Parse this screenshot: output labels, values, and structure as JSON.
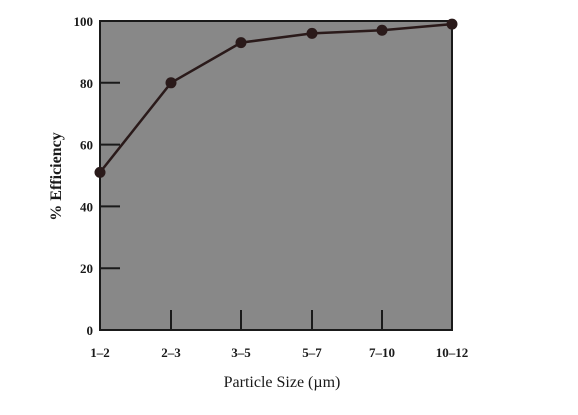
{
  "chart_data": {
    "type": "line",
    "title": "",
    "xlabel": "Particle Size (µm)",
    "ylabel": "% Efficiency",
    "categories": [
      "1–2",
      "2–3",
      "3–5",
      "5–7",
      "7–10",
      "10–12"
    ],
    "values": [
      51,
      80,
      93,
      96,
      97,
      99
    ],
    "ylim": [
      0,
      100
    ],
    "yticks": [
      0,
      20,
      40,
      60,
      80,
      100
    ],
    "grid": false,
    "legend": "none",
    "colors": {
      "plot_background": "#888888",
      "line": "#2a1a1a",
      "marker": "#2a1a1a",
      "axis": "#1a1a1a"
    }
  }
}
